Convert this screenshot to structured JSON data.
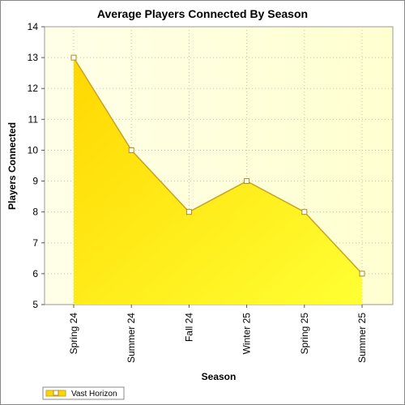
{
  "chart_data": {
    "type": "area",
    "title": "Average Players Connected By Season",
    "xlabel": "Season",
    "ylabel": "Players Connected",
    "categories": [
      "Spring 24",
      "Summer 24",
      "Fall 24",
      "Winter 25",
      "Spring 25",
      "Summer 25"
    ],
    "series": [
      {
        "name": "Vast Horizon",
        "values": [
          13,
          10,
          8,
          9,
          8,
          6
        ]
      }
    ],
    "ylim": [
      5,
      14
    ],
    "yticks": [
      "5",
      "6",
      "7",
      "8",
      "9",
      "10",
      "11",
      "12",
      "13",
      "14"
    ],
    "grid": true,
    "legend_position": "bottom-left",
    "colors": {
      "fill_top": "#ffd700",
      "fill_bottom": "#ffff33",
      "line": "#c9a227",
      "marker_fill": "#ffffff",
      "marker_stroke": "#b08a1e",
      "plot_bg_left": "#ffffe8",
      "plot_bg_right": "#ffffd0",
      "grid": "#c8c8a0"
    }
  }
}
